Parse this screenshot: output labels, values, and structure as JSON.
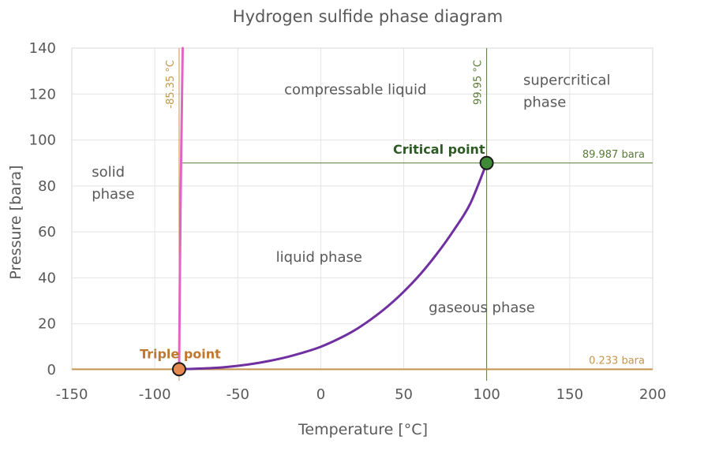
{
  "chart_data": {
    "type": "line",
    "title": "Hydrogen sulfide phase diagram",
    "xlabel": "Temperature [°C]",
    "ylabel": "Pressure [bara]",
    "xlim": [
      -150,
      200
    ],
    "ylim": [
      0,
      140
    ],
    "x_ticks": [
      "-150",
      "-100",
      "-50",
      "0",
      "50",
      "100",
      "150",
      "200"
    ],
    "y_ticks": [
      "0",
      "20",
      "40",
      "60",
      "80",
      "100",
      "120",
      "140"
    ],
    "grid": true,
    "series": [
      {
        "role": "vaporization curve",
        "color": "#7030a0",
        "x": [
          -85.35,
          -80,
          -70,
          -60,
          -50,
          -40,
          -30,
          -20,
          -10,
          0,
          10,
          20,
          30,
          40,
          50,
          60,
          70,
          80,
          90,
          99.95
        ],
        "y": [
          0.233,
          0.35,
          0.6,
          1.0,
          1.7,
          2.7,
          4.0,
          5.6,
          7.6,
          10.0,
          13.2,
          17.0,
          21.8,
          27.4,
          34.0,
          41.6,
          50.5,
          60.6,
          72.2,
          89.987
        ]
      },
      {
        "role": "melting curve",
        "color": "#e066c2",
        "x": [
          -85.35,
          -84.5,
          -83.2
        ],
        "y": [
          0.233,
          70,
          140
        ]
      }
    ],
    "reference_lines": [
      {
        "orientation": "vertical",
        "value": -85.35,
        "label": "-85.35 °C",
        "color": "#c5954f"
      },
      {
        "orientation": "vertical",
        "value": 99.95,
        "label": "99.95 °C",
        "color": "#5a7a3a"
      },
      {
        "orientation": "horizontal",
        "value": 89.987,
        "from_x": -83.5,
        "label": "89.987 bara",
        "color": "#5a7a3a"
      },
      {
        "orientation": "horizontal",
        "value": 0.233,
        "label": "0.233 bara",
        "color": "#c5954f"
      }
    ],
    "points": [
      {
        "label": "Triple point",
        "x": -85.35,
        "y": 0.233,
        "fill": "#e5894f",
        "label_color": "#c0782f"
      },
      {
        "label": "Critical point",
        "x": 99.95,
        "y": 89.987,
        "fill": "#3f8a36",
        "label_color": "#2e5a24"
      }
    ],
    "regions": [
      {
        "lines": [
          "solid",
          "phase"
        ],
        "x": -138,
        "y": 84
      },
      {
        "lines": [
          "compressable liquid"
        ],
        "x": -22,
        "y": 120
      },
      {
        "lines": [
          "supercritical",
          "phase"
        ],
        "x": 122,
        "y": 124
      },
      {
        "lines": [
          "liquid phase"
        ],
        "x": -27,
        "y": 47
      },
      {
        "lines": [
          "gaseous phase"
        ],
        "x": 65,
        "y": 25
      }
    ]
  }
}
